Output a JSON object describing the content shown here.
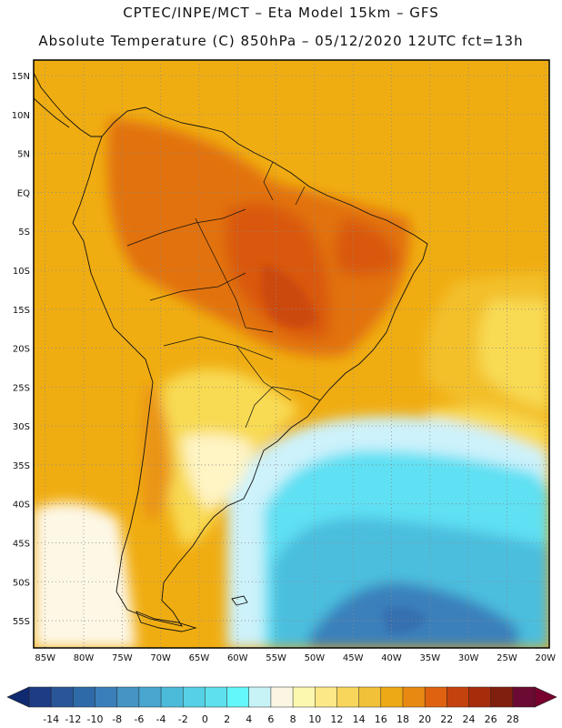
{
  "header": {
    "line1": "CPTEC/INPE/MCT  –  Eta Model 15km  –  GFS",
    "line2": "Absolute Temperature (C) 850hPa  –  05/12/2020 12UTC fct=13h"
  },
  "map": {
    "lat_labels": [
      "15N",
      "10N",
      "5N",
      "EQ",
      "5S",
      "10S",
      "15S",
      "20S",
      "25S",
      "30S",
      "35S",
      "40S",
      "45S",
      "50S",
      "55S"
    ],
    "lon_labels": [
      "85W",
      "80W",
      "75W",
      "70W",
      "65W",
      "60W",
      "55W",
      "50W",
      "45W",
      "40W",
      "35W",
      "30W",
      "25W",
      "20W"
    ],
    "grid": "dotted",
    "region": "South America",
    "palette": {
      "t28": "#a01f0c",
      "t26": "#b8300e",
      "t24": "#cc4a0e",
      "t22": "#d9580c",
      "t20": "#e2720e",
      "t18": "#ea9412",
      "t16": "#f0ad12",
      "t14": "#f3c02c",
      "t12": "#f8da52",
      "t10": "#fde782",
      "t8": "#fef4c4",
      "t6": "#fdf7e6",
      "t4": "#cdf2fb",
      "t2": "#9ee8f6",
      "t0": "#5fe0f3",
      "tm2": "#4fd4ee",
      "tm4": "#4bbede",
      "tm6": "#47a9d2",
      "tm8": "#3f95c6",
      "tm10": "#3a80bb",
      "tm12": "#3670b0",
      "tm14": "#2c4f94"
    }
  },
  "colorbar": {
    "labels": [
      "-14",
      "-12",
      "-10",
      "-8",
      "-6",
      "-4",
      "-2",
      "0",
      "2",
      "4",
      "6",
      "8",
      "10",
      "12",
      "14",
      "16",
      "18",
      "20",
      "22",
      "24",
      "26",
      "28"
    ],
    "colors": [
      "#1e3c84",
      "#2a5698",
      "#2f6aa8",
      "#3b7fba",
      "#4594c4",
      "#48a6cf",
      "#4cbbda",
      "#55d0e4",
      "#5ee0ee",
      "#63f6fa",
      "#c7f2f6",
      "#fbf6e4",
      "#fdf8b0",
      "#fce887",
      "#f8d65c",
      "#f1c13a",
      "#eeaa16",
      "#e88a12",
      "#de6210",
      "#c4420d",
      "#a62c0c",
      "#7f1f10",
      "#6b0a32"
    ]
  }
}
